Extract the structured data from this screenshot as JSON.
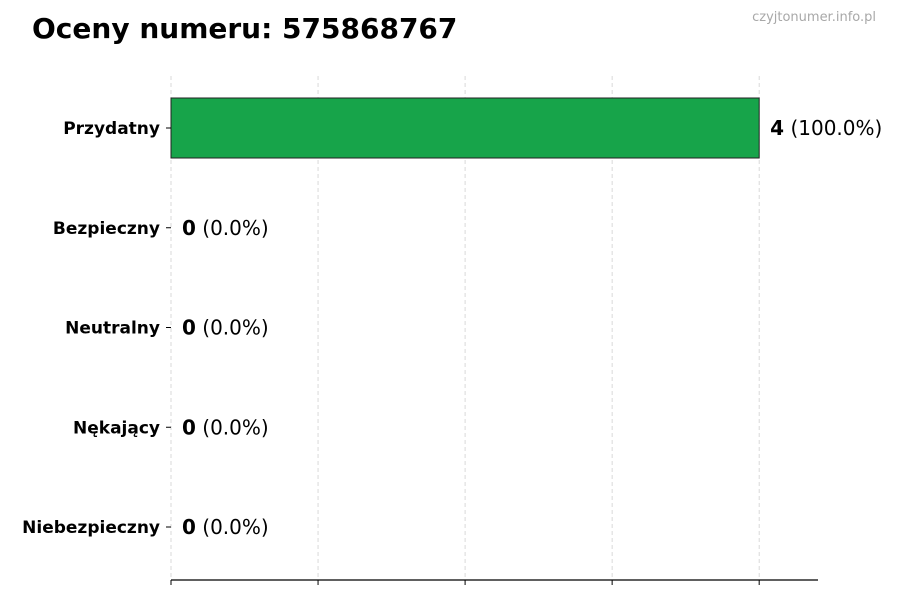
{
  "chart_data": {
    "type": "bar",
    "orientation": "horizontal",
    "title": "Oceny numeru: 575868767",
    "watermark": "czyjtonumer.info.pl",
    "categories": [
      "Przydatny",
      "Bezpieczny",
      "Neutralny",
      "Nękający",
      "Niebezpieczny"
    ],
    "values": [
      4,
      0,
      0,
      0,
      0
    ],
    "labels": [
      {
        "count": "4",
        "percent": "(100.0%)"
      },
      {
        "count": "0",
        "percent": "(0.0%)"
      },
      {
        "count": "0",
        "percent": "(0.0%)"
      },
      {
        "count": "0",
        "percent": "(0.0%)"
      },
      {
        "count": "0",
        "percent": "(0.0%)"
      }
    ],
    "xlim": [
      0,
      4.4
    ],
    "xticks": [
      0,
      1,
      2,
      3,
      4
    ],
    "xtick_labels_visible": false,
    "grid": "x-dashed",
    "bar_color": "#17a44a",
    "xlabel": "",
    "ylabel": ""
  }
}
